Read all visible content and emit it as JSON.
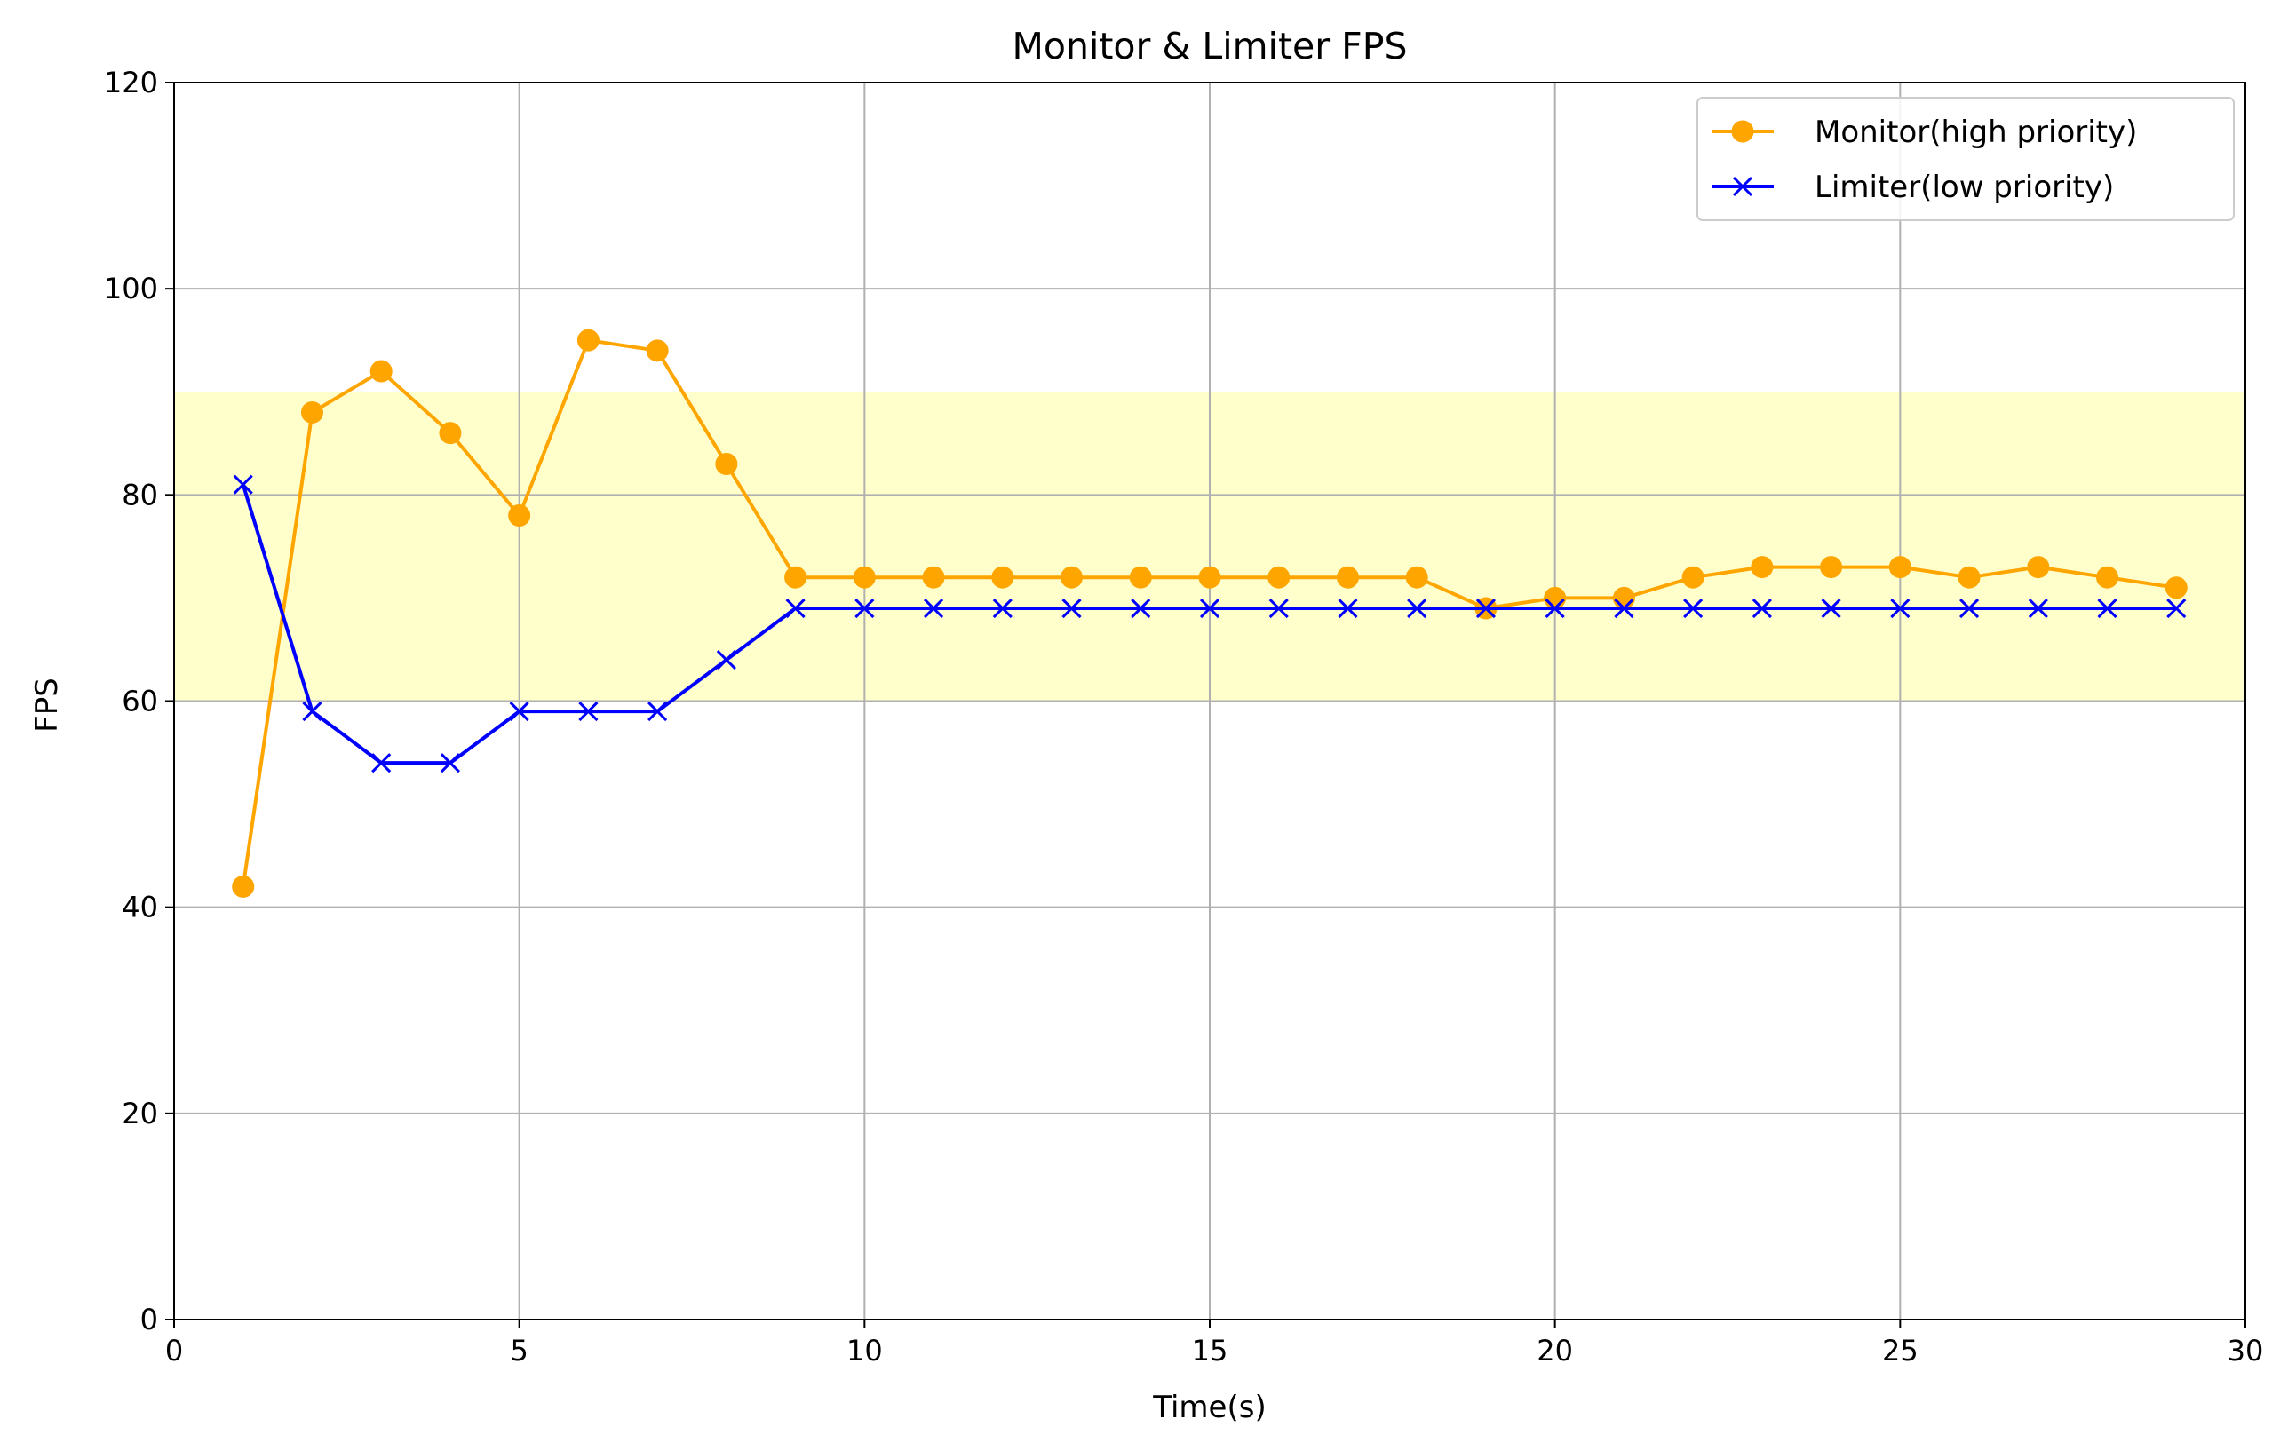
{
  "chart_data": {
    "type": "line",
    "title": "Monitor & Limiter FPS",
    "xlabel": "Time(s)",
    "ylabel": "FPS",
    "xlim": [
      0,
      30
    ],
    "ylim": [
      0,
      120
    ],
    "xticks": [
      0,
      5,
      10,
      15,
      20,
      25,
      30
    ],
    "yticks": [
      0,
      20,
      40,
      60,
      80,
      100,
      120
    ],
    "grid": true,
    "legend_position": "top-right",
    "highlight_band": {
      "y_from": 60,
      "y_to": 90,
      "color": "#ffffcc"
    },
    "x": [
      1,
      2,
      3,
      4,
      5,
      6,
      7,
      8,
      9,
      10,
      11,
      12,
      13,
      14,
      15,
      16,
      17,
      18,
      19,
      20,
      21,
      22,
      23,
      24,
      25,
      26,
      27,
      28,
      29
    ],
    "series": [
      {
        "name": "Monitor(high priority)",
        "color": "#ffa500",
        "marker": "circle",
        "values": [
          42,
          88,
          92,
          86,
          78,
          95,
          94,
          83,
          72,
          72,
          72,
          72,
          72,
          72,
          72,
          72,
          72,
          72,
          69,
          70,
          70,
          72,
          73,
          73,
          73,
          72,
          73,
          72,
          71
        ]
      },
      {
        "name": "Limiter(low priority)",
        "color": "#0000ff",
        "marker": "x",
        "values": [
          81,
          59,
          54,
          54,
          59,
          59,
          59,
          64,
          69,
          69,
          69,
          69,
          69,
          69,
          69,
          69,
          69,
          69,
          69,
          69,
          69,
          69,
          69,
          69,
          69,
          69,
          69,
          69,
          69
        ]
      }
    ]
  }
}
